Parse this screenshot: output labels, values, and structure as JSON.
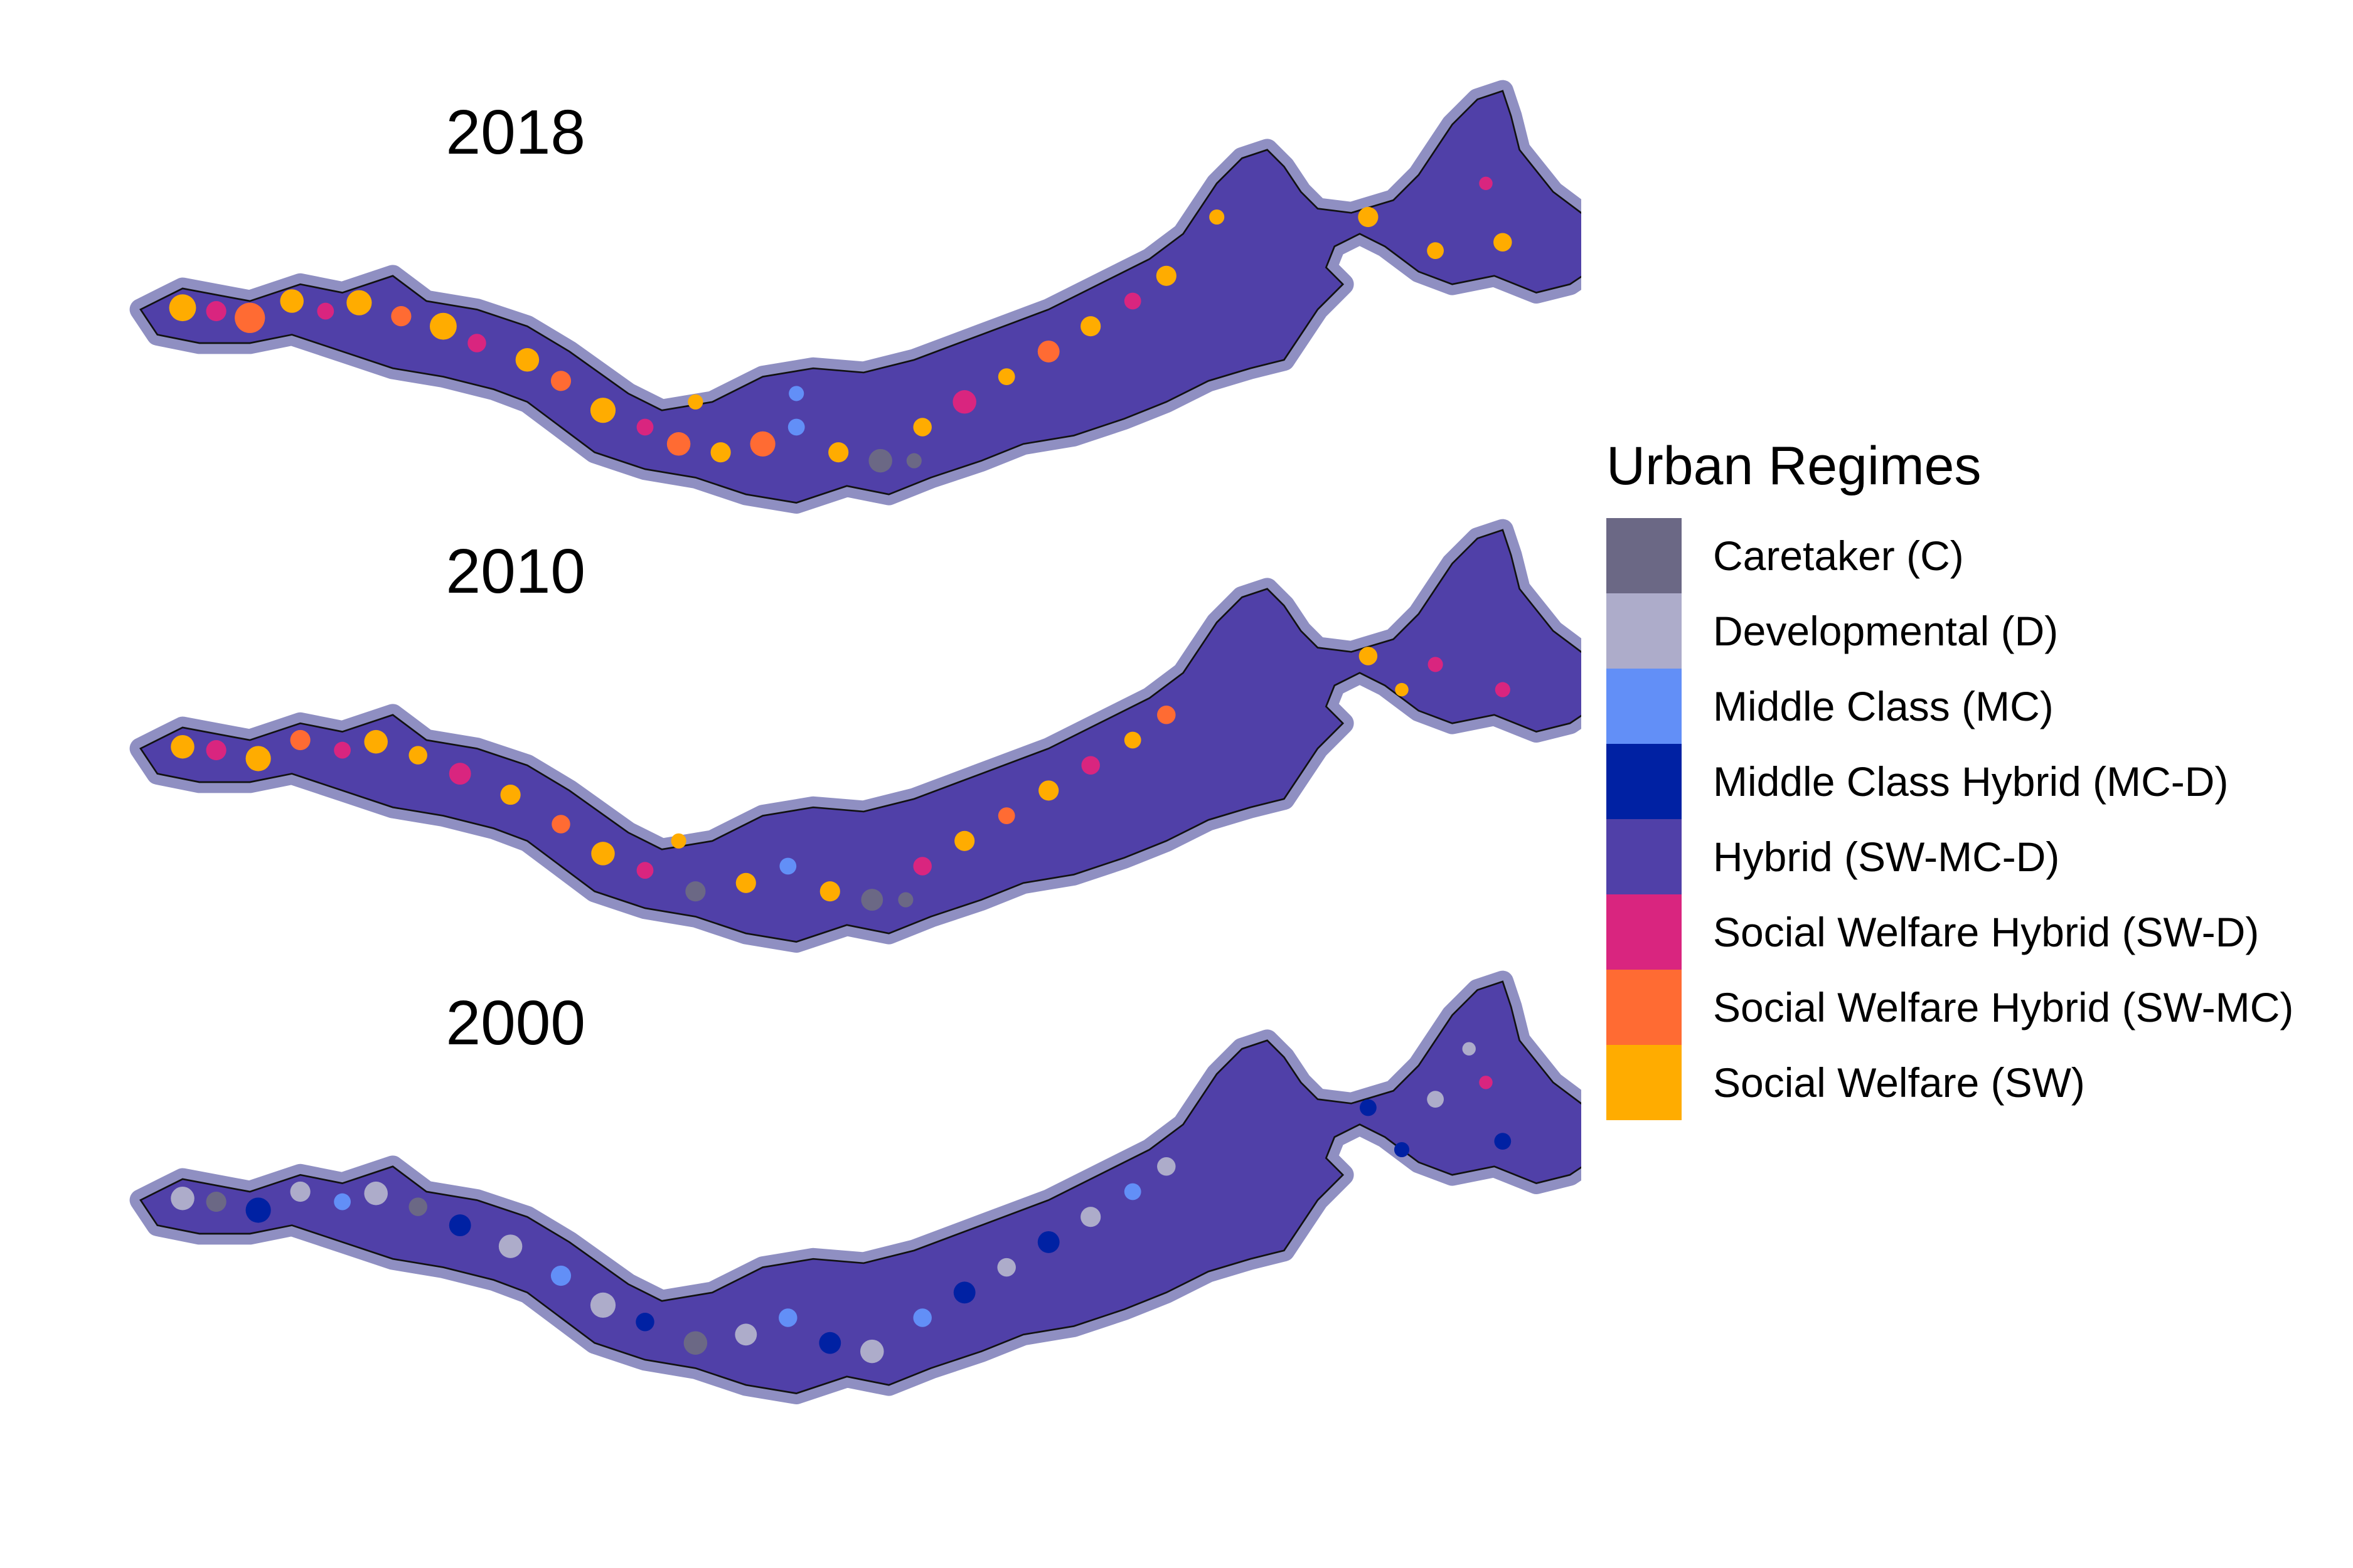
{
  "panels": [
    {
      "year": "2018",
      "variant": "2018"
    },
    {
      "year": "2010",
      "variant": "2010"
    },
    {
      "year": "2000",
      "variant": "2000"
    }
  ],
  "legend": {
    "title": "Urban Regimes",
    "items": [
      {
        "label": "Caretaker (C)",
        "color": "#6b6885"
      },
      {
        "label": "Developmental (D)",
        "color": "#adacca"
      },
      {
        "label": "Middle Class (MC)",
        "color": "#628ff7"
      },
      {
        "label": "Middle Class Hybrid (MC-D)",
        "color": "#0021a3"
      },
      {
        "label": "Hybrid (SW-MC-D)",
        "color": "#5040a8"
      },
      {
        "label": "Social Welfare Hybrid (SW-D)",
        "color": "#d9257f"
      },
      {
        "label": "Social Welfare Hybrid (SW-MC)",
        "color": "#ff6b33"
      },
      {
        "label": "Social Welfare (SW)",
        "color": "#ffac00"
      }
    ]
  },
  "colors": {
    "coast_halo": "#8f8fc2",
    "land_base": "#5040a8",
    "boundary": "#111111"
  }
}
